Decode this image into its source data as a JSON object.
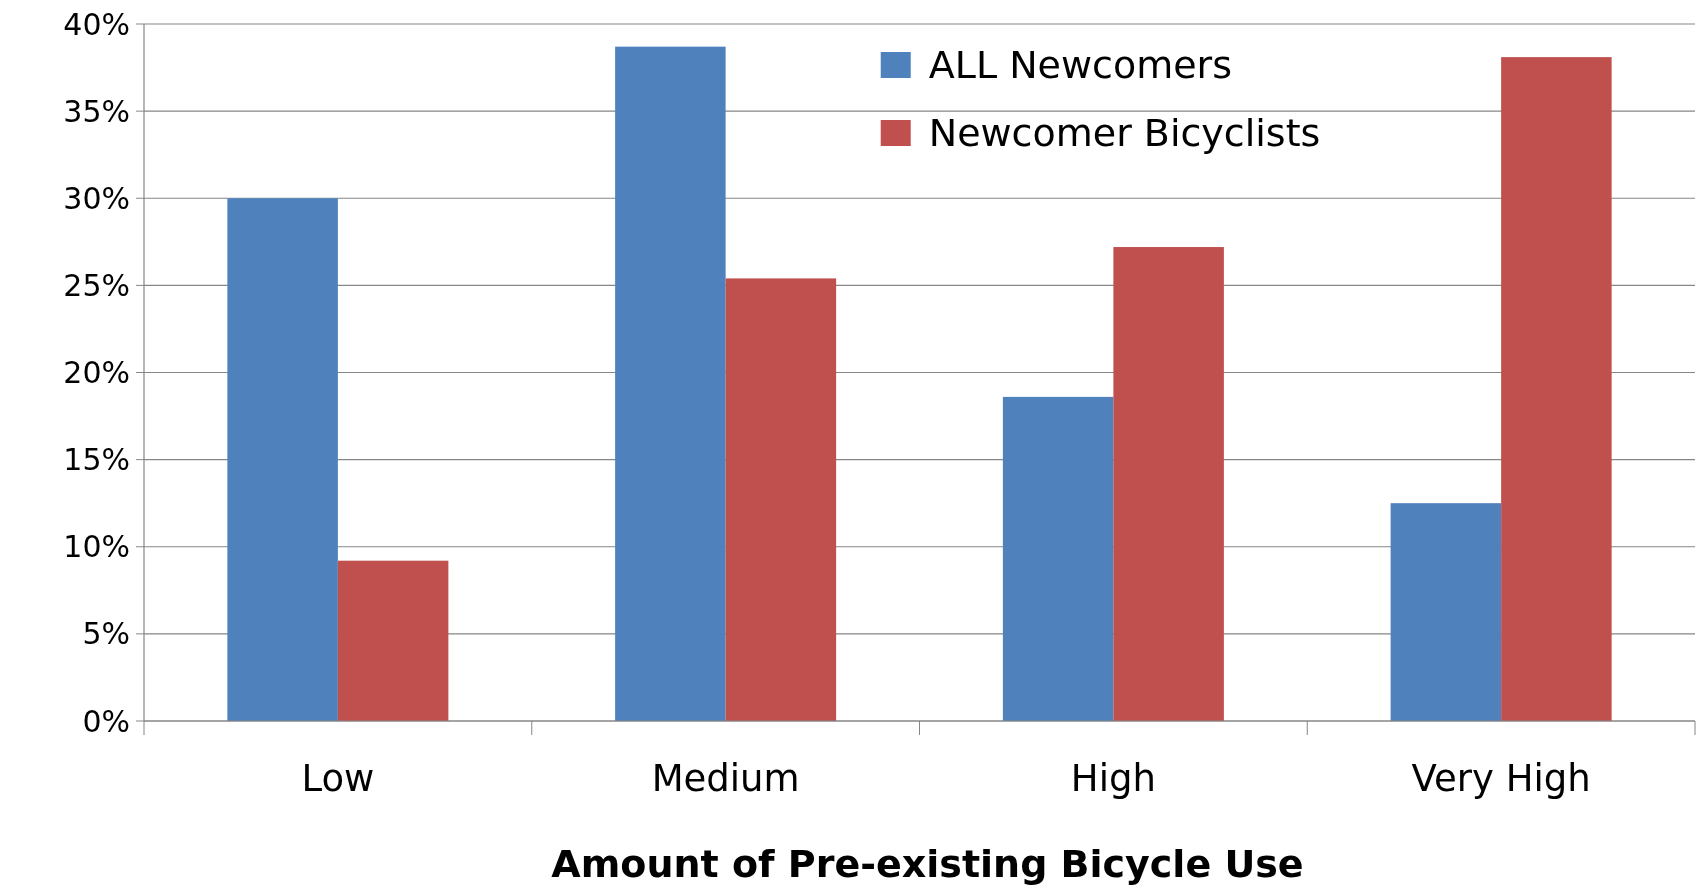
{
  "chart_data": {
    "type": "bar",
    "xlabel": "Amount of Pre-existing Bicycle Use",
    "categories": [
      "Low",
      "Medium",
      "High",
      "Very High"
    ],
    "series": [
      {
        "name": "ALL Newcomers",
        "color": "#4f81bd",
        "values": [
          30,
          38.7,
          18.6,
          12.5
        ]
      },
      {
        "name": "Newcomer Bicyclists",
        "color": "#c0504d",
        "values": [
          9.2,
          25.4,
          27.2,
          38.1
        ]
      }
    ],
    "ylim": [
      0,
      40
    ],
    "yticks": [
      {
        "value": 0,
        "label": "0%"
      },
      {
        "value": 5,
        "label": "5%"
      },
      {
        "value": 10,
        "label": "10%"
      },
      {
        "value": 15,
        "label": "15%"
      },
      {
        "value": 20,
        "label": "20%"
      },
      {
        "value": 25,
        "label": "25%"
      },
      {
        "value": 30,
        "label": "30%"
      },
      {
        "value": 35,
        "label": "35%"
      },
      {
        "value": 40,
        "label": "40%"
      }
    ],
    "grid": "y",
    "legend": "top right"
  }
}
